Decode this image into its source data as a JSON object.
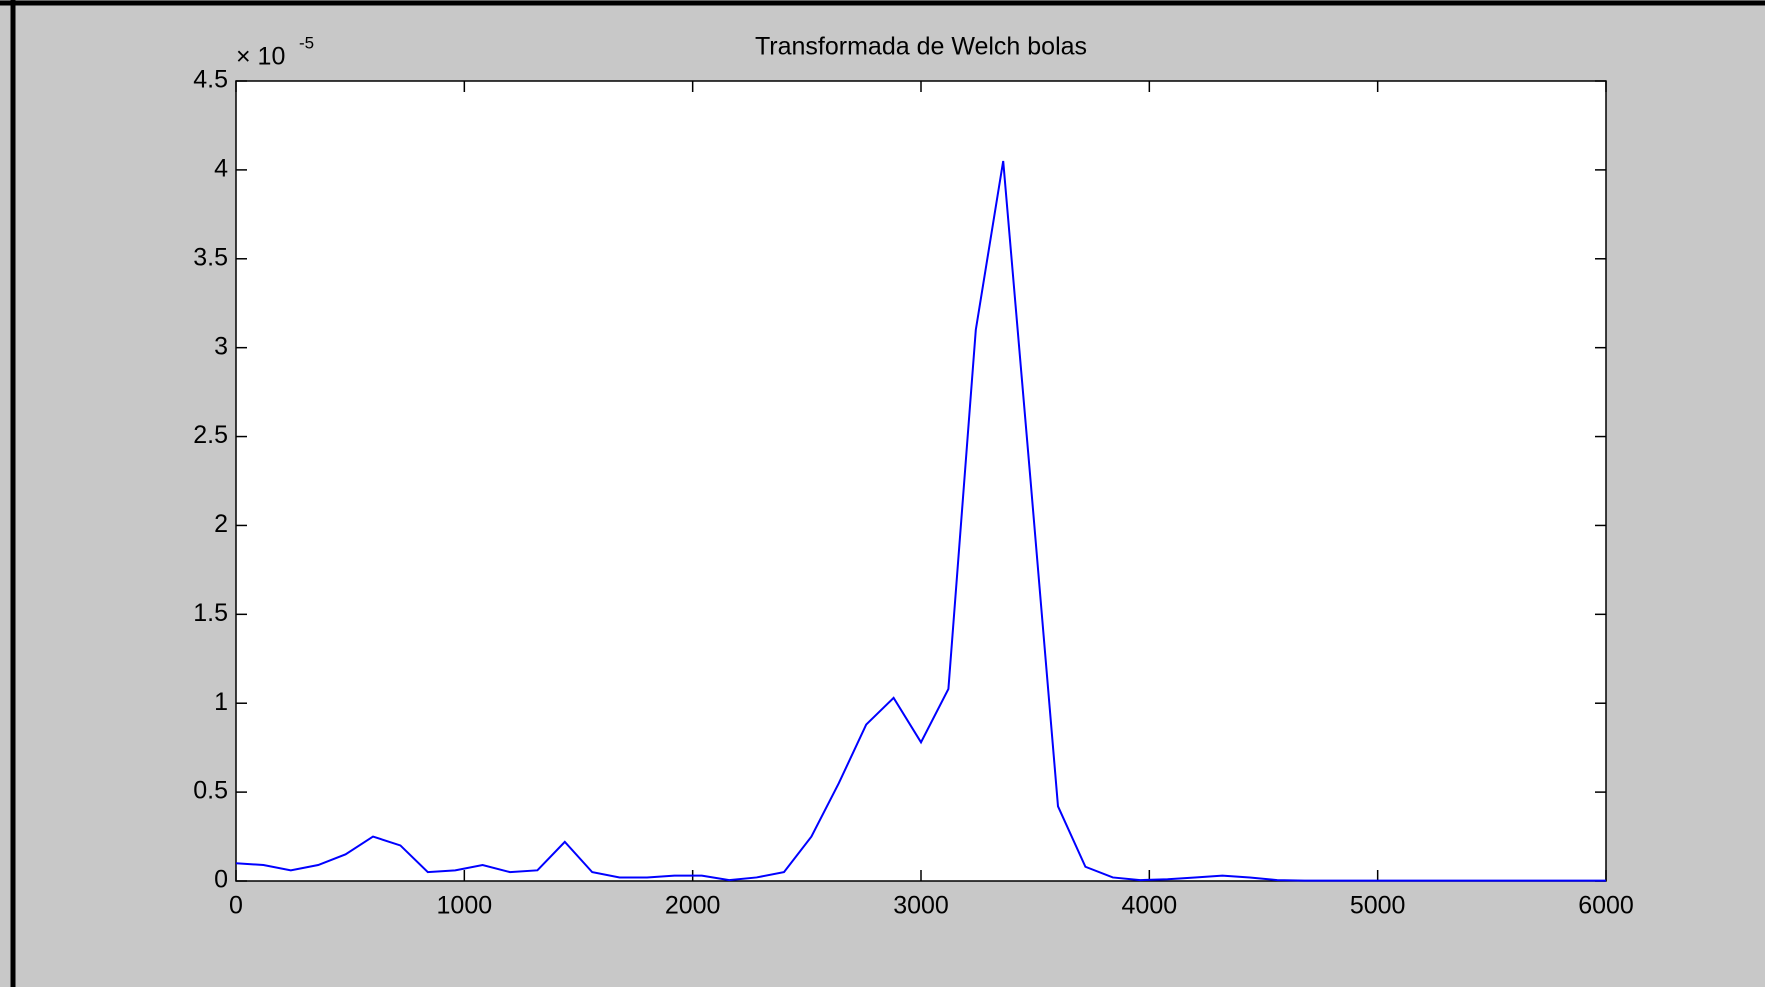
{
  "chart_data": {
    "type": "line",
    "title": "Transformada de Welch bolas",
    "y_exponent": {
      "base": "× 10",
      "power": "-5"
    },
    "x": [
      0,
      120,
      240,
      360,
      480,
      600,
      720,
      840,
      960,
      1080,
      1200,
      1320,
      1440,
      1560,
      1680,
      1800,
      1920,
      2040,
      2160,
      2280,
      2400,
      2520,
      2640,
      2760,
      2880,
      3000,
      3120,
      3240,
      3360,
      3480,
      3600,
      3720,
      3840,
      3960,
      4080,
      4200,
      4320,
      4440,
      4560,
      4680,
      4800,
      4920,
      5040,
      5160,
      5280,
      5400,
      5520,
      5640,
      5760,
      5880,
      6000
    ],
    "series": [
      {
        "color": "#0000ff",
        "values": [
          0.1,
          0.09,
          0.06,
          0.09,
          0.15,
          0.25,
          0.2,
          0.05,
          0.06,
          0.09,
          0.05,
          0.06,
          0.22,
          0.05,
          0.02,
          0.02,
          0.03,
          0.03,
          0.005,
          0.02,
          0.05,
          0.25,
          0.55,
          0.88,
          1.03,
          0.78,
          1.08,
          3.1,
          4.05,
          2.25,
          0.42,
          0.08,
          0.02,
          0.005,
          0.01,
          0.02,
          0.03,
          0.02,
          0.005,
          0.002,
          0.002,
          0.002,
          0.002,
          0.002,
          0.002,
          0.002,
          0.002,
          0.002,
          0.002,
          0.002,
          0.002
        ]
      }
    ],
    "xlim": [
      0,
      6000
    ],
    "xticks": [
      0,
      1000,
      2000,
      3000,
      4000,
      5000,
      6000
    ],
    "ylim": [
      0,
      4.5
    ],
    "yticks": [
      0,
      0.5,
      1,
      1.5,
      2,
      2.5,
      3,
      3.5,
      4,
      4.5
    ],
    "grid": false
  }
}
